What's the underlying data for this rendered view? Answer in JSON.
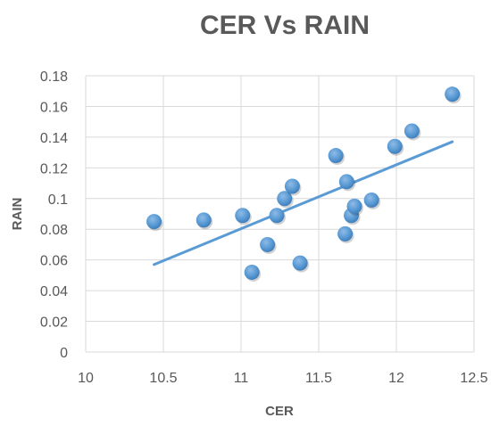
{
  "chart_data": {
    "type": "scatter",
    "title": "CER Vs RAIN",
    "xlabel": "CER",
    "ylabel": "RAIN",
    "xlim": [
      10,
      12.5
    ],
    "ylim": [
      0,
      0.18
    ],
    "x_ticks": [
      10,
      10.5,
      11,
      11.5,
      12,
      12.5
    ],
    "x_tick_labels": [
      "10",
      "10.5",
      "11",
      "11.5",
      "12",
      "12.5"
    ],
    "y_ticks": [
      0,
      0.02,
      0.04,
      0.06,
      0.08,
      0.1,
      0.12,
      0.14,
      0.16,
      0.18
    ],
    "y_tick_labels": [
      "0",
      "0.02",
      "0.04",
      "0.06",
      "0.08",
      "0.1",
      "0.12",
      "0.14",
      "0.16",
      "0.18"
    ],
    "grid": true,
    "legend": "none",
    "colors": {
      "points": "#5B9BD5",
      "trendline": "#5B9BD5",
      "grid": "#d9d9d9",
      "text": "#595959"
    },
    "points": [
      {
        "x": 10.44,
        "y": 0.085
      },
      {
        "x": 10.76,
        "y": 0.086
      },
      {
        "x": 11.01,
        "y": 0.089
      },
      {
        "x": 11.07,
        "y": 0.052
      },
      {
        "x": 11.17,
        "y": 0.07
      },
      {
        "x": 11.23,
        "y": 0.089
      },
      {
        "x": 11.28,
        "y": 0.1
      },
      {
        "x": 11.33,
        "y": 0.108
      },
      {
        "x": 11.38,
        "y": 0.058
      },
      {
        "x": 11.61,
        "y": 0.128
      },
      {
        "x": 11.67,
        "y": 0.077
      },
      {
        "x": 11.68,
        "y": 0.111
      },
      {
        "x": 11.71,
        "y": 0.089
      },
      {
        "x": 11.73,
        "y": 0.095
      },
      {
        "x": 11.84,
        "y": 0.099
      },
      {
        "x": 11.99,
        "y": 0.134
      },
      {
        "x": 12.1,
        "y": 0.144
      },
      {
        "x": 12.36,
        "y": 0.168
      }
    ],
    "trendline": {
      "type": "linear",
      "x": [
        10.44,
        12.36
      ],
      "y": [
        0.057,
        0.137
      ]
    }
  }
}
